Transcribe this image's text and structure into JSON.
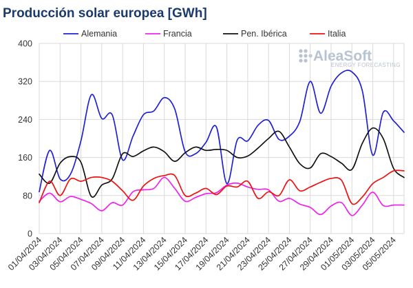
{
  "chart_data": {
    "type": "line",
    "title": "Producción solar europea [GWh]",
    "ylim": [
      0,
      400
    ],
    "yticks": [
      0,
      80,
      160,
      240,
      320,
      400
    ],
    "x_labels": [
      "01/04/2024",
      "03/04/2024",
      "05/04/2024",
      "07/04/2024",
      "09/04/2024",
      "11/04/2024",
      "13/04/2024",
      "15/04/2024",
      "17/04/2024",
      "19/04/2024",
      "21/04/2024",
      "23/04/2024",
      "25/04/2024",
      "27/04/2024",
      "29/04/2024",
      "01/05/2024",
      "03/05/2024",
      "05/05/2024"
    ],
    "x": [
      "01/04",
      "02/04",
      "03/04",
      "04/04",
      "05/04",
      "06/04",
      "07/04",
      "08/04",
      "09/04",
      "10/04",
      "11/04",
      "12/04",
      "13/04",
      "14/04",
      "15/04",
      "16/04",
      "17/04",
      "18/04",
      "19/04",
      "20/04",
      "21/04",
      "22/04",
      "23/04",
      "24/04",
      "25/04",
      "26/04",
      "27/04",
      "28/04",
      "29/04",
      "30/04",
      "01/05",
      "02/05",
      "03/05",
      "04/05",
      "05/05",
      "06/05"
    ],
    "grid": true,
    "legend_position": "top",
    "series": [
      {
        "name": "Alemania",
        "color": "#1f1fd6",
        "values": [
          88,
          175,
          115,
          125,
          195,
          292,
          242,
          250,
          155,
          205,
          250,
          258,
          286,
          262,
          172,
          168,
          192,
          224,
          105,
          197,
          195,
          228,
          238,
          198,
          205,
          236,
          320,
          253,
          310,
          338,
          340,
          300,
          165,
          255,
          237,
          213
        ]
      },
      {
        "name": "Francia",
        "color": "#ee22ee",
        "values": [
          68,
          85,
          67,
          78,
          72,
          63,
          48,
          65,
          60,
          88,
          92,
          95,
          118,
          95,
          68,
          76,
          84,
          86,
          102,
          106,
          98,
          93,
          92,
          68,
          74,
          62,
          55,
          40,
          58,
          65,
          38,
          60,
          87,
          59,
          60,
          60
        ]
      },
      {
        "name": "Pen. Ibérica",
        "color": "#111111",
        "values": [
          125,
          106,
          148,
          162,
          150,
          78,
          102,
          115,
          168,
          162,
          174,
          182,
          172,
          152,
          170,
          182,
          175,
          177,
          175,
          160,
          163,
          180,
          200,
          215,
          182,
          147,
          138,
          168,
          162,
          148,
          135,
          190,
          222,
          200,
          137,
          118
        ]
      },
      {
        "name": "Italia",
        "color": "#ee1111",
        "values": [
          65,
          110,
          80,
          115,
          110,
          118,
          118,
          110,
          90,
          70,
          100,
          116,
          122,
          122,
          80,
          85,
          95,
          82,
          100,
          98,
          110,
          74,
          88,
          80,
          113,
          90,
          98,
          108,
          116,
          112,
          63,
          77,
          105,
          118,
          132,
          132
        ]
      }
    ]
  },
  "logo": {
    "main": "AleaSoft",
    "sub": "ENERGY FORECASTING",
    "color": "#b7c3d3"
  }
}
